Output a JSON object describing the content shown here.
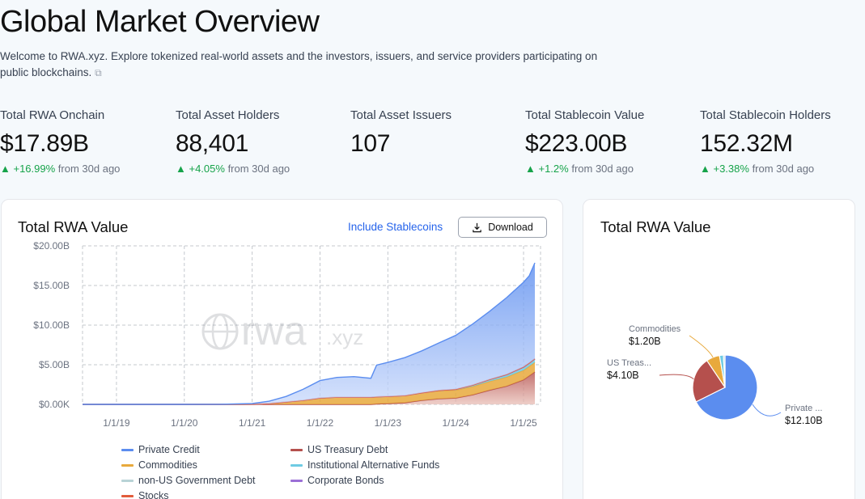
{
  "header": {
    "title": "Global Market Overview",
    "subtitle_line1": "Welcome to RWA.xyz. Explore tokenized real-world assets and the investors, issuers, and service providers participating on",
    "subtitle_line2": "public blockchains.",
    "link_icon": "link-icon"
  },
  "stats": [
    {
      "label": "Total RWA Onchain",
      "value": "$17.89B",
      "change": "▲ +16.99%",
      "suffix": "from 30d ago"
    },
    {
      "label": "Total Asset Holders",
      "value": "88,401",
      "change": "▲ +4.05%",
      "suffix": "from 30d ago"
    },
    {
      "label": "Total Asset Issuers",
      "value": "107",
      "change": "",
      "suffix": ""
    },
    {
      "label": "Total Stablecoin Value",
      "value": "$223.00B",
      "change": "▲ +1.2%",
      "suffix": "from 30d ago"
    },
    {
      "label": "Total Stablecoin Holders",
      "value": "152.32M",
      "change": "▲ +3.38%",
      "suffix": "from 30d ago"
    }
  ],
  "area_card": {
    "title": "Total RWA Value",
    "include_link": "Include Stablecoins",
    "download_label": "Download",
    "watermark": "rwa",
    "watermark_suffix": ".xyz"
  },
  "pie_card": {
    "title": "Total RWA Value"
  },
  "colors": {
    "private_credit": "#5b8def",
    "us_treasury": "#b5504d",
    "commodities": "#e8a93c",
    "institutional": "#6fcbe3",
    "non_us_gov": "#b8d3d6",
    "corporate_bonds": "#9b6fd6",
    "stocks": "#e25c3b"
  },
  "chart_data": [
    {
      "type": "area",
      "title": "Total RWA Value",
      "stacked": true,
      "x_ticks": [
        "1/1/19",
        "1/1/20",
        "1/1/21",
        "1/1/22",
        "1/1/23",
        "1/1/24",
        "1/1/25"
      ],
      "y_ticks": [
        "$0.00K",
        "$5.00B",
        "$10.00B",
        "$15.00B",
        "$20.00B"
      ],
      "ylim": [
        0,
        20
      ],
      "y_unit": "B",
      "x": [
        "2018-07",
        "2019-01",
        "2019-07",
        "2020-01",
        "2020-07",
        "2021-01",
        "2021-04",
        "2021-07",
        "2021-10",
        "2022-01",
        "2022-04",
        "2022-07",
        "2022-10",
        "2022-11",
        "2023-01",
        "2023-04",
        "2023-07",
        "2023-10",
        "2024-01",
        "2024-04",
        "2024-07",
        "2024-10",
        "2025-01",
        "2025-02",
        "2025-03"
      ],
      "series": [
        {
          "name": "US Treasury Debt",
          "values": [
            0,
            0,
            0,
            0,
            0,
            0,
            0,
            0,
            0,
            0,
            0,
            0,
            0,
            0.05,
            0.1,
            0.2,
            0.5,
            0.7,
            0.8,
            1.2,
            1.8,
            2.3,
            3.1,
            3.6,
            4.1
          ]
        },
        {
          "name": "Commodities",
          "values": [
            0,
            0,
            0,
            0,
            0,
            0.02,
            0.1,
            0.3,
            0.5,
            0.8,
            0.9,
            0.9,
            0.9,
            0.9,
            0.9,
            0.9,
            0.95,
            1.0,
            1.0,
            1.05,
            1.1,
            1.15,
            1.2,
            1.2,
            1.2
          ]
        },
        {
          "name": "Institutional Alternative Funds",
          "values": [
            0,
            0,
            0,
            0,
            0,
            0,
            0,
            0,
            0,
            0,
            0,
            0,
            0,
            0,
            0,
            0,
            0,
            0.05,
            0.1,
            0.15,
            0.2,
            0.25,
            0.3,
            0.3,
            0.35
          ]
        },
        {
          "name": "non-US Government Debt",
          "values": [
            0,
            0,
            0,
            0,
            0,
            0,
            0,
            0,
            0,
            0,
            0,
            0,
            0,
            0,
            0,
            0,
            0,
            0,
            0,
            0.01,
            0.02,
            0.03,
            0.05,
            0.05,
            0.05
          ]
        },
        {
          "name": "Corporate Bonds",
          "values": [
            0,
            0,
            0,
            0,
            0,
            0,
            0,
            0,
            0,
            0,
            0,
            0,
            0,
            0,
            0,
            0,
            0,
            0,
            0,
            0.01,
            0.01,
            0.02,
            0.03,
            0.03,
            0.03
          ]
        },
        {
          "name": "Stocks",
          "values": [
            0,
            0,
            0,
            0,
            0,
            0,
            0,
            0,
            0,
            0,
            0,
            0,
            0,
            0,
            0,
            0,
            0,
            0,
            0,
            0.01,
            0.01,
            0.02,
            0.03,
            0.03,
            0.03
          ]
        },
        {
          "name": "Private Credit",
          "values": [
            0,
            0,
            0,
            0,
            0.01,
            0.08,
            0.3,
            0.7,
            1.4,
            2.2,
            2.5,
            2.6,
            2.4,
            4.0,
            4.3,
            4.8,
            5.3,
            6.0,
            6.8,
            7.7,
            8.6,
            9.7,
            10.7,
            11.0,
            12.1
          ]
        }
      ]
    },
    {
      "type": "pie",
      "title": "Total RWA Value",
      "slices": [
        {
          "label": "Private ...",
          "value": 12.1,
          "value_label": "$12.10B"
        },
        {
          "label": "US Treas...",
          "value": 4.1,
          "value_label": "$4.10B"
        },
        {
          "label": "Commodities",
          "value": 1.2,
          "value_label": "$1.20B"
        },
        {
          "label": "",
          "value": 0.35,
          "value_label": ""
        },
        {
          "label": "",
          "value": 0.14,
          "value_label": ""
        }
      ]
    }
  ],
  "legend": [
    {
      "name": "Private Credit",
      "color_key": "private_credit"
    },
    {
      "name": "US Treasury Debt",
      "color_key": "us_treasury"
    },
    {
      "name": "Commodities",
      "color_key": "commodities"
    },
    {
      "name": "Institutional Alternative Funds",
      "color_key": "institutional"
    },
    {
      "name": "non-US Government Debt",
      "color_key": "non_us_gov"
    },
    {
      "name": "Corporate Bonds",
      "color_key": "corporate_bonds"
    },
    {
      "name": "Stocks",
      "color_key": "stocks"
    }
  ]
}
